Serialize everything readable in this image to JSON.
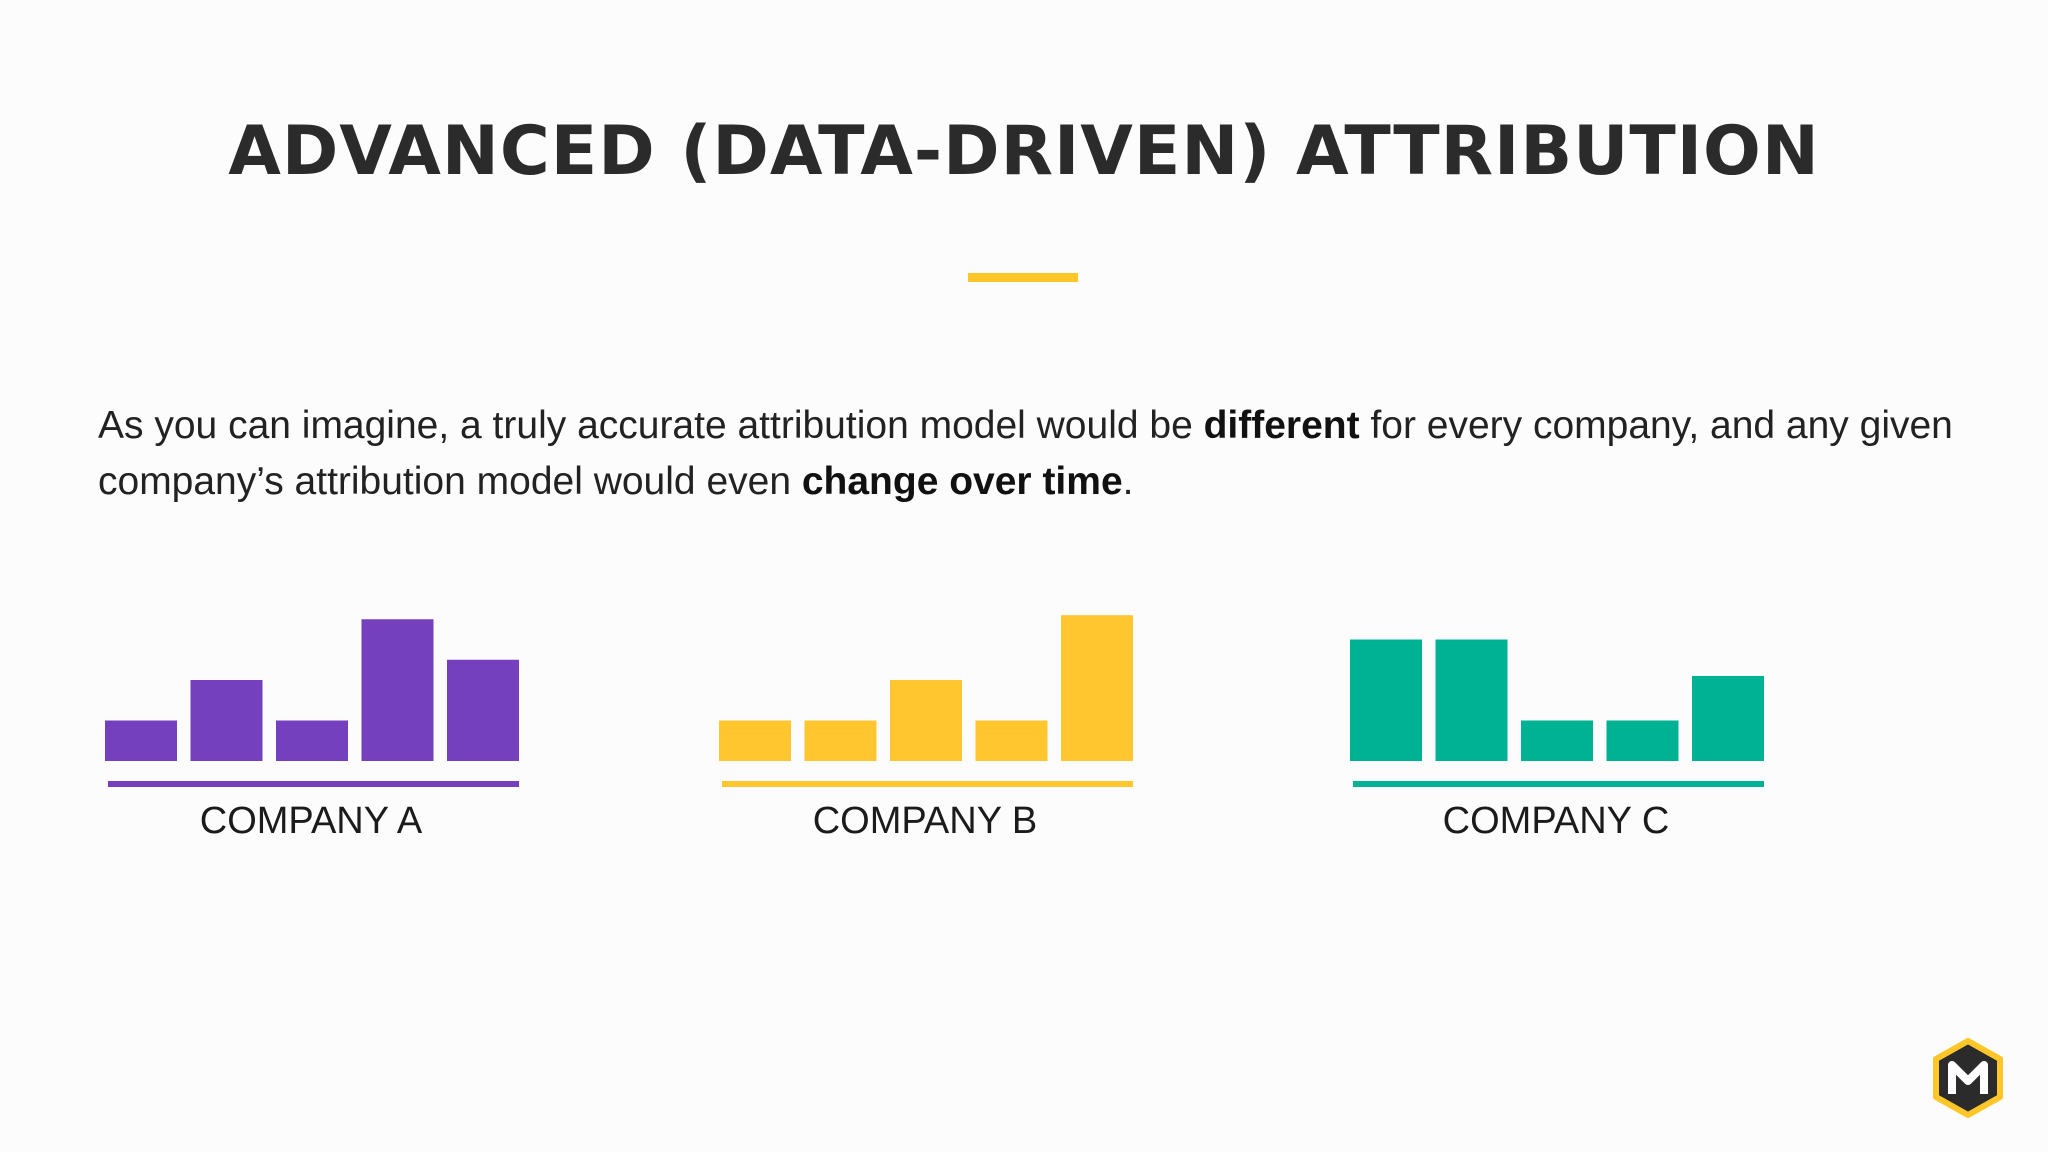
{
  "slide": {
    "title": "ADVANCED (DATA-DRIVEN) ATTRIBUTION",
    "paragraph": {
      "part1": "As you can imagine, a truly accurate attribution model would be ",
      "bold1": "different",
      "part2": " for every company, and any given company’s attribution model would even ",
      "bold2": "change over time",
      "part3": "."
    },
    "accent_color": "#ffc629"
  },
  "chart_data": [
    {
      "type": "bar",
      "name": "COMPANY A",
      "color": "#7540be",
      "values": [
        1,
        2,
        1,
        3.5,
        2.5
      ]
    },
    {
      "type": "bar",
      "name": "COMPANY B",
      "color": "#ffc62f",
      "values": [
        1,
        1,
        2,
        1,
        3.6
      ]
    },
    {
      "type": "bar",
      "name": "COMPANY C",
      "color": "#00b294",
      "values": [
        3,
        3,
        1,
        1,
        2.1
      ]
    }
  ],
  "logo": {
    "icon": "hexagon-m-logo",
    "border_color": "#ffc629",
    "fill_color": "#2b2b2b"
  }
}
